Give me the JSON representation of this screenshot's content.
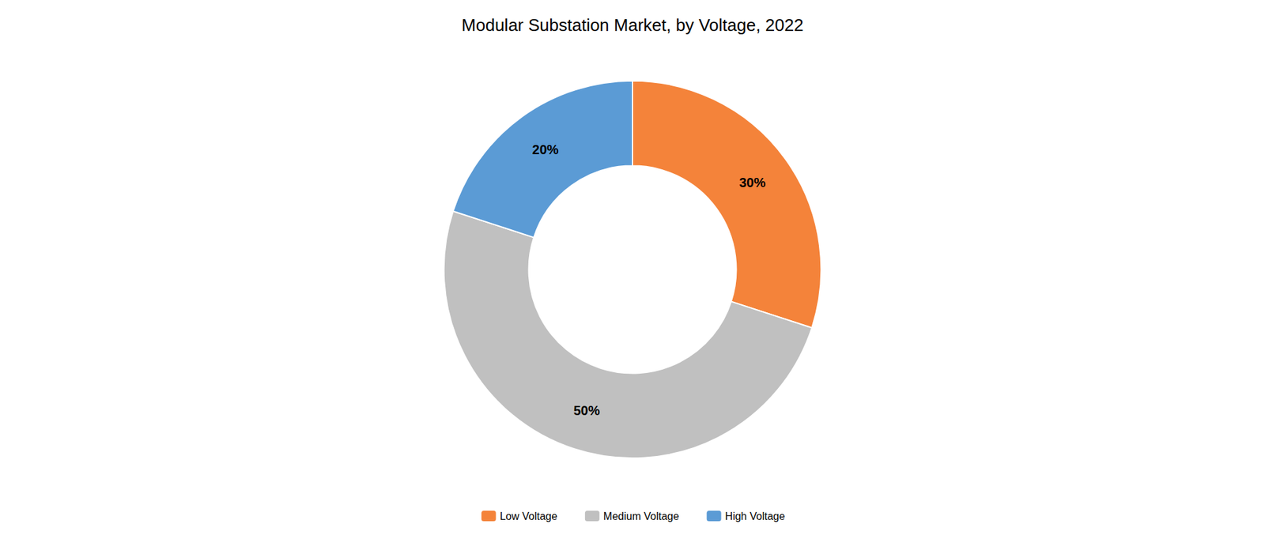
{
  "chart_data": {
    "type": "donut",
    "title": "Modular Substation Market, by Voltage, 2022",
    "categories": [
      "Low Voltage",
      "Medium Voltage",
      "High Voltage"
    ],
    "values": [
      30,
      50,
      20
    ],
    "value_labels": [
      "30%",
      "50%",
      "20%"
    ],
    "colors": [
      "#F4833A",
      "#C0C0C0",
      "#5B9BD5"
    ],
    "data_labels": true,
    "legend": "bottom"
  }
}
